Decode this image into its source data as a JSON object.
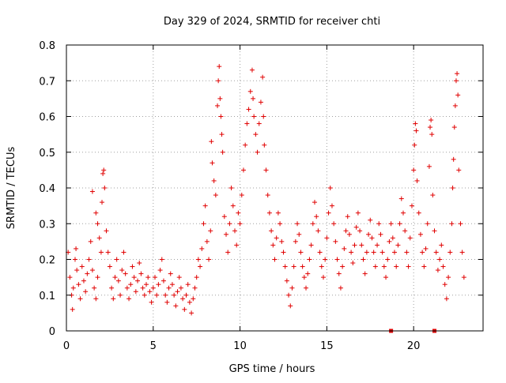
{
  "chart_data": {
    "type": "scatter",
    "title": "Day 329 of 2024, SRMTID for receiver chti",
    "xlabel": "GPS time / hours",
    "ylabel": "SRMTID / TECUs",
    "xlim": [
      0,
      24
    ],
    "ylim": [
      0,
      0.8
    ],
    "x_ticks": [
      0,
      5,
      10,
      15,
      20
    ],
    "x_tick_labels": [
      "0",
      "5",
      "10",
      "15",
      "20"
    ],
    "y_ticks": [
      0,
      0.1,
      0.2,
      0.3,
      0.4,
      0.5,
      0.6,
      0.7,
      0.8
    ],
    "y_tick_labels": [
      "0",
      "0.1",
      "0.2",
      "0.3",
      "0.4",
      "0.5",
      "0.6",
      "0.7",
      "0.8"
    ],
    "grid": true,
    "marker": "+",
    "marker_color": "#e00000",
    "series": [
      {
        "name": "SRMTID",
        "points": [
          [
            0.1,
            0.22
          ],
          [
            0.2,
            0.15
          ],
          [
            0.3,
            0.1
          ],
          [
            0.35,
            0.06
          ],
          [
            0.4,
            0.12
          ],
          [
            0.5,
            0.2
          ],
          [
            0.55,
            0.23
          ],
          [
            0.6,
            0.17
          ],
          [
            0.7,
            0.13
          ],
          [
            0.8,
            0.09
          ],
          [
            0.9,
            0.18
          ],
          [
            1.0,
            0.14
          ],
          [
            1.1,
            0.11
          ],
          [
            1.2,
            0.16
          ],
          [
            1.3,
            0.2
          ],
          [
            1.4,
            0.25
          ],
          [
            1.5,
            0.17
          ],
          [
            1.6,
            0.12
          ],
          [
            1.7,
            0.09
          ],
          [
            1.8,
            0.15
          ],
          [
            1.5,
            0.39
          ],
          [
            1.7,
            0.33
          ],
          [
            1.8,
            0.3
          ],
          [
            1.9,
            0.26
          ],
          [
            2.0,
            0.22
          ],
          [
            2.05,
            0.36
          ],
          [
            2.1,
            0.44
          ],
          [
            2.15,
            0.45
          ],
          [
            2.2,
            0.4
          ],
          [
            2.3,
            0.28
          ],
          [
            2.4,
            0.22
          ],
          [
            2.5,
            0.18
          ],
          [
            2.6,
            0.12
          ],
          [
            2.7,
            0.09
          ],
          [
            2.8,
            0.15
          ],
          [
            2.9,
            0.2
          ],
          [
            3.0,
            0.14
          ],
          [
            3.1,
            0.1
          ],
          [
            3.2,
            0.17
          ],
          [
            3.3,
            0.22
          ],
          [
            3.4,
            0.16
          ],
          [
            3.5,
            0.12
          ],
          [
            3.6,
            0.09
          ],
          [
            3.7,
            0.13
          ],
          [
            3.8,
            0.18
          ],
          [
            3.9,
            0.15
          ],
          [
            4.0,
            0.11
          ],
          [
            4.1,
            0.14
          ],
          [
            4.2,
            0.19
          ],
          [
            4.3,
            0.16
          ],
          [
            4.4,
            0.12
          ],
          [
            4.5,
            0.1
          ],
          [
            4.6,
            0.13
          ],
          [
            4.7,
            0.15
          ],
          [
            4.8,
            0.11
          ],
          [
            4.9,
            0.08
          ],
          [
            5.0,
            0.12
          ],
          [
            5.1,
            0.15
          ],
          [
            5.2,
            0.1
          ],
          [
            5.3,
            0.13
          ],
          [
            5.4,
            0.17
          ],
          [
            5.5,
            0.2
          ],
          [
            5.6,
            0.14
          ],
          [
            5.7,
            0.1
          ],
          [
            5.8,
            0.08
          ],
          [
            5.9,
            0.12
          ],
          [
            6.0,
            0.16
          ],
          [
            6.1,
            0.13
          ],
          [
            6.2,
            0.1
          ],
          [
            6.3,
            0.07
          ],
          [
            6.4,
            0.11
          ],
          [
            6.5,
            0.15
          ],
          [
            6.6,
            0.12
          ],
          [
            6.7,
            0.09
          ],
          [
            6.8,
            0.06
          ],
          [
            6.9,
            0.1
          ],
          [
            7.0,
            0.13
          ],
          [
            7.1,
            0.08
          ],
          [
            7.2,
            0.05
          ],
          [
            7.3,
            0.09
          ],
          [
            7.4,
            0.12
          ],
          [
            7.5,
            0.15
          ],
          [
            7.6,
            0.2
          ],
          [
            7.7,
            0.18
          ],
          [
            7.8,
            0.23
          ],
          [
            7.9,
            0.3
          ],
          [
            8.0,
            0.35
          ],
          [
            8.1,
            0.25
          ],
          [
            8.2,
            0.2
          ],
          [
            8.3,
            0.28
          ],
          [
            8.35,
            0.53
          ],
          [
            8.4,
            0.47
          ],
          [
            8.5,
            0.42
          ],
          [
            8.6,
            0.38
          ],
          [
            8.7,
            0.63
          ],
          [
            8.75,
            0.7
          ],
          [
            8.8,
            0.74
          ],
          [
            8.85,
            0.65
          ],
          [
            8.9,
            0.6
          ],
          [
            8.95,
            0.55
          ],
          [
            9.0,
            0.5
          ],
          [
            9.1,
            0.32
          ],
          [
            9.2,
            0.27
          ],
          [
            9.3,
            0.22
          ],
          [
            9.4,
            0.3
          ],
          [
            9.5,
            0.4
          ],
          [
            9.6,
            0.35
          ],
          [
            9.7,
            0.28
          ],
          [
            9.8,
            0.24
          ],
          [
            9.9,
            0.33
          ],
          [
            10.0,
            0.3
          ],
          [
            10.1,
            0.38
          ],
          [
            10.2,
            0.45
          ],
          [
            10.3,
            0.52
          ],
          [
            10.4,
            0.58
          ],
          [
            10.5,
            0.62
          ],
          [
            10.6,
            0.67
          ],
          [
            10.7,
            0.73
          ],
          [
            10.75,
            0.65
          ],
          [
            10.8,
            0.6
          ],
          [
            10.9,
            0.55
          ],
          [
            11.0,
            0.5
          ],
          [
            11.1,
            0.58
          ],
          [
            11.2,
            0.64
          ],
          [
            11.3,
            0.71
          ],
          [
            11.35,
            0.6
          ],
          [
            11.4,
            0.52
          ],
          [
            11.5,
            0.45
          ],
          [
            11.6,
            0.38
          ],
          [
            11.7,
            0.33
          ],
          [
            11.8,
            0.28
          ],
          [
            11.9,
            0.24
          ],
          [
            12.0,
            0.2
          ],
          [
            12.1,
            0.26
          ],
          [
            12.2,
            0.33
          ],
          [
            12.3,
            0.3
          ],
          [
            12.4,
            0.25
          ],
          [
            12.5,
            0.22
          ],
          [
            12.6,
            0.18
          ],
          [
            12.7,
            0.14
          ],
          [
            12.8,
            0.1
          ],
          [
            12.9,
            0.07
          ],
          [
            13.0,
            0.12
          ],
          [
            13.1,
            0.18
          ],
          [
            13.2,
            0.25
          ],
          [
            13.3,
            0.3
          ],
          [
            13.4,
            0.27
          ],
          [
            13.5,
            0.22
          ],
          [
            13.6,
            0.18
          ],
          [
            13.7,
            0.15
          ],
          [
            13.8,
            0.12
          ],
          [
            13.9,
            0.16
          ],
          [
            14.0,
            0.2
          ],
          [
            14.1,
            0.24
          ],
          [
            14.2,
            0.3
          ],
          [
            14.3,
            0.36
          ],
          [
            14.4,
            0.32
          ],
          [
            14.5,
            0.28
          ],
          [
            14.6,
            0.22
          ],
          [
            14.7,
            0.18
          ],
          [
            14.8,
            0.15
          ],
          [
            14.9,
            0.2
          ],
          [
            15.0,
            0.26
          ],
          [
            15.1,
            0.33
          ],
          [
            15.2,
            0.4
          ],
          [
            15.3,
            0.35
          ],
          [
            15.4,
            0.3
          ],
          [
            15.5,
            0.25
          ],
          [
            15.6,
            0.2
          ],
          [
            15.7,
            0.16
          ],
          [
            15.8,
            0.12
          ],
          [
            15.9,
            0.18
          ],
          [
            16.0,
            0.23
          ],
          [
            16.1,
            0.28
          ],
          [
            16.2,
            0.32
          ],
          [
            16.3,
            0.27
          ],
          [
            16.4,
            0.22
          ],
          [
            16.5,
            0.19
          ],
          [
            16.6,
            0.24
          ],
          [
            16.7,
            0.29
          ],
          [
            16.8,
            0.33
          ],
          [
            16.9,
            0.28
          ],
          [
            17.0,
            0.24
          ],
          [
            17.1,
            0.2
          ],
          [
            17.2,
            0.16
          ],
          [
            17.3,
            0.22
          ],
          [
            17.4,
            0.27
          ],
          [
            17.5,
            0.31
          ],
          [
            17.6,
            0.26
          ],
          [
            17.7,
            0.22
          ],
          [
            17.8,
            0.18
          ],
          [
            17.9,
            0.24
          ],
          [
            18.0,
            0.3
          ],
          [
            18.1,
            0.27
          ],
          [
            18.2,
            0.22
          ],
          [
            18.3,
            0.18
          ],
          [
            18.4,
            0.15
          ],
          [
            18.5,
            0.2
          ],
          [
            18.6,
            0.25
          ],
          [
            18.7,
            0.3
          ],
          [
            18.8,
            0.26
          ],
          [
            18.9,
            0.22
          ],
          [
            19.0,
            0.18
          ],
          [
            19.1,
            0.24
          ],
          [
            19.2,
            0.3
          ],
          [
            19.3,
            0.37
          ],
          [
            19.4,
            0.33
          ],
          [
            19.5,
            0.28
          ],
          [
            19.6,
            0.22
          ],
          [
            19.7,
            0.18
          ],
          [
            19.8,
            0.26
          ],
          [
            19.9,
            0.35
          ],
          [
            20.0,
            0.45
          ],
          [
            20.05,
            0.52
          ],
          [
            20.1,
            0.58
          ],
          [
            20.15,
            0.56
          ],
          [
            20.2,
            0.42
          ],
          [
            20.3,
            0.33
          ],
          [
            20.4,
            0.27
          ],
          [
            20.5,
            0.22
          ],
          [
            20.6,
            0.18
          ],
          [
            20.7,
            0.23
          ],
          [
            20.8,
            0.3
          ],
          [
            20.9,
            0.46
          ],
          [
            20.95,
            0.57
          ],
          [
            21.0,
            0.59
          ],
          [
            21.05,
            0.55
          ],
          [
            21.1,
            0.38
          ],
          [
            21.2,
            0.28
          ],
          [
            21.3,
            0.22
          ],
          [
            21.4,
            0.17
          ],
          [
            21.5,
            0.2
          ],
          [
            21.6,
            0.24
          ],
          [
            21.7,
            0.18
          ],
          [
            21.8,
            0.13
          ],
          [
            21.9,
            0.09
          ],
          [
            22.0,
            0.15
          ],
          [
            22.1,
            0.22
          ],
          [
            22.2,
            0.3
          ],
          [
            22.25,
            0.4
          ],
          [
            22.3,
            0.48
          ],
          [
            22.35,
            0.57
          ],
          [
            22.4,
            0.63
          ],
          [
            22.45,
            0.7
          ],
          [
            22.5,
            0.72
          ],
          [
            22.55,
            0.66
          ],
          [
            22.6,
            0.45
          ],
          [
            22.7,
            0.3
          ],
          [
            22.8,
            0.22
          ],
          [
            22.9,
            0.15
          ]
        ]
      }
    ],
    "baseline_markers": [
      18.7,
      21.2
    ]
  }
}
